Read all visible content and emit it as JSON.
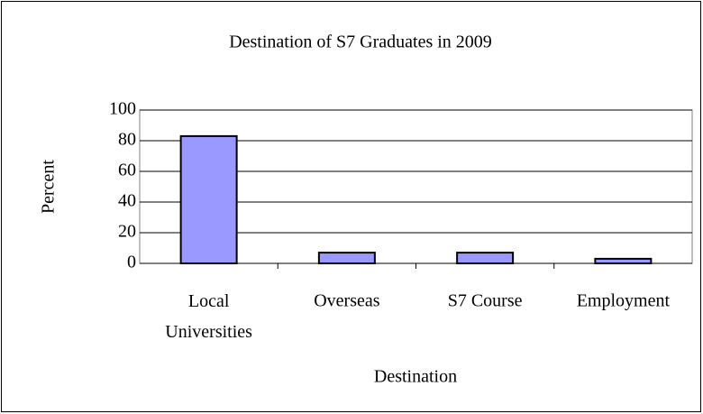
{
  "chart_data": {
    "type": "bar",
    "title": "Destination of S7 Graduates in 2009",
    "x_label": "Destination",
    "y_label": "Percent",
    "categories": [
      "Local Universities",
      "Overseas",
      "S7 Course",
      "Employment"
    ],
    "values": [
      83,
      7,
      7,
      3
    ],
    "color": "#9999ff",
    "ylim": [
      0,
      100
    ],
    "yticks": [
      0,
      20,
      40,
      60,
      80,
      100
    ],
    "grid": true
  }
}
